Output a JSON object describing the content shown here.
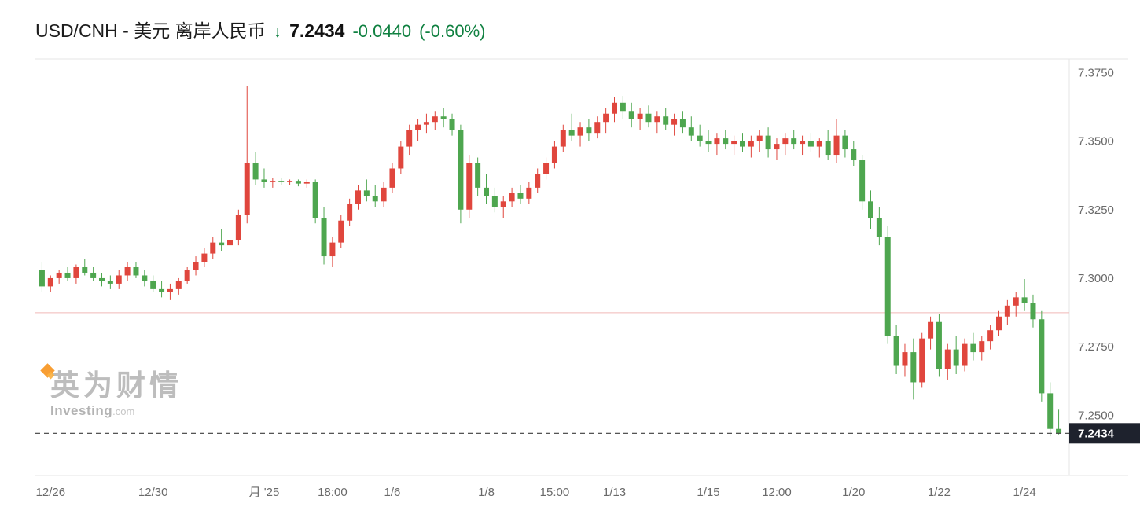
{
  "header": {
    "title": "USD/CNH - 美元 离岸人民币",
    "arrow": "↓",
    "price": "7.2434",
    "change": "-0.0440",
    "change_pct": "(-0.60%)",
    "change_color": "#0f8040"
  },
  "watermark": {
    "cn": "英为财情",
    "en": "Investing",
    "en_suffix": ".com"
  },
  "chart_data": {
    "type": "candlestick",
    "title": "USD/CNH - 美元 离岸人民币",
    "last_price": 7.2434,
    "prev_close": 7.2874,
    "change": -0.044,
    "change_pct_text": "-0.60%",
    "ylim": [
      7.228,
      7.38
    ],
    "y_ticks": [
      7.375,
      7.35,
      7.325,
      7.3,
      7.275,
      7.25
    ],
    "x_ticks": [
      {
        "label": "12/26",
        "index": 1
      },
      {
        "label": "12/30",
        "index": 13
      },
      {
        "label": "月 '25",
        "index": 26
      },
      {
        "label": "18:00",
        "index": 34
      },
      {
        "label": "1/6",
        "index": 41
      },
      {
        "label": "1/8",
        "index": 52
      },
      {
        "label": "15:00",
        "index": 60
      },
      {
        "label": "1/13",
        "index": 67
      },
      {
        "label": "1/15",
        "index": 78
      },
      {
        "label": "12:00",
        "index": 86
      },
      {
        "label": "1/20",
        "index": 95
      },
      {
        "label": "1/22",
        "index": 105
      },
      {
        "label": "1/24",
        "index": 115
      }
    ],
    "up_color": "#e0463d",
    "down_color": "#4ea64f",
    "prev_close_line_color": "#f0b9b7",
    "last_price_line_color": "#3c3c3c",
    "badge_bg": "#1e222d",
    "grid_color": "#e6e6e6",
    "candles": [
      [
        7.303,
        7.306,
        7.295,
        7.297
      ],
      [
        7.297,
        7.301,
        7.295,
        7.3
      ],
      [
        7.3,
        7.303,
        7.298,
        7.302
      ],
      [
        7.302,
        7.304,
        7.299,
        7.3
      ],
      [
        7.3,
        7.305,
        7.298,
        7.304
      ],
      [
        7.304,
        7.307,
        7.301,
        7.302
      ],
      [
        7.302,
        7.304,
        7.299,
        7.3
      ],
      [
        7.3,
        7.302,
        7.297,
        7.299
      ],
      [
        7.299,
        7.301,
        7.296,
        7.298
      ],
      [
        7.298,
        7.303,
        7.296,
        7.301
      ],
      [
        7.301,
        7.306,
        7.299,
        7.304
      ],
      [
        7.304,
        7.306,
        7.3,
        7.301
      ],
      [
        7.301,
        7.303,
        7.297,
        7.299
      ],
      [
        7.299,
        7.301,
        7.295,
        7.296
      ],
      [
        7.296,
        7.299,
        7.293,
        7.295
      ],
      [
        7.295,
        7.298,
        7.292,
        7.296
      ],
      [
        7.296,
        7.3,
        7.294,
        7.299
      ],
      [
        7.299,
        7.304,
        7.298,
        7.303
      ],
      [
        7.303,
        7.308,
        7.301,
        7.306
      ],
      [
        7.306,
        7.311,
        7.304,
        7.309
      ],
      [
        7.309,
        7.315,
        7.307,
        7.313
      ],
      [
        7.313,
        7.318,
        7.31,
        7.312
      ],
      [
        7.312,
        7.316,
        7.308,
        7.314
      ],
      [
        7.314,
        7.325,
        7.312,
        7.323
      ],
      [
        7.323,
        7.37,
        7.32,
        7.342
      ],
      [
        7.342,
        7.346,
        7.334,
        7.336
      ],
      [
        7.336,
        7.34,
        7.333,
        7.335
      ],
      [
        7.335,
        7.3365,
        7.333,
        7.3355
      ],
      [
        7.3355,
        7.3365,
        7.334,
        7.335
      ],
      [
        7.335,
        7.336,
        7.334,
        7.3355
      ],
      [
        7.3355,
        7.336,
        7.3335,
        7.3345
      ],
      [
        7.3345,
        7.336,
        7.333,
        7.335
      ],
      [
        7.335,
        7.336,
        7.32,
        7.322
      ],
      [
        7.322,
        7.326,
        7.305,
        7.308
      ],
      [
        7.308,
        7.315,
        7.304,
        7.313
      ],
      [
        7.313,
        7.323,
        7.311,
        7.321
      ],
      [
        7.321,
        7.329,
        7.319,
        7.327
      ],
      [
        7.327,
        7.334,
        7.325,
        7.332
      ],
      [
        7.332,
        7.336,
        7.328,
        7.33
      ],
      [
        7.33,
        7.334,
        7.326,
        7.328
      ],
      [
        7.328,
        7.335,
        7.326,
        7.333
      ],
      [
        7.333,
        7.342,
        7.331,
        7.34
      ],
      [
        7.34,
        7.35,
        7.338,
        7.348
      ],
      [
        7.348,
        7.356,
        7.345,
        7.354
      ],
      [
        7.354,
        7.358,
        7.35,
        7.356
      ],
      [
        7.356,
        7.36,
        7.353,
        7.357
      ],
      [
        7.357,
        7.361,
        7.354,
        7.359
      ],
      [
        7.359,
        7.362,
        7.355,
        7.358
      ],
      [
        7.358,
        7.36,
        7.352,
        7.354
      ],
      [
        7.354,
        7.356,
        7.32,
        7.325
      ],
      [
        7.325,
        7.345,
        7.322,
        7.342
      ],
      [
        7.342,
        7.344,
        7.33,
        7.333
      ],
      [
        7.333,
        7.338,
        7.327,
        7.33
      ],
      [
        7.33,
        7.333,
        7.324,
        7.326
      ],
      [
        7.326,
        7.33,
        7.322,
        7.328
      ],
      [
        7.328,
        7.333,
        7.326,
        7.331
      ],
      [
        7.331,
        7.334,
        7.327,
        7.329
      ],
      [
        7.329,
        7.335,
        7.327,
        7.333
      ],
      [
        7.333,
        7.34,
        7.331,
        7.338
      ],
      [
        7.338,
        7.344,
        7.336,
        7.342
      ],
      [
        7.342,
        7.35,
        7.34,
        7.348
      ],
      [
        7.348,
        7.356,
        7.346,
        7.354
      ],
      [
        7.354,
        7.36,
        7.35,
        7.352
      ],
      [
        7.352,
        7.357,
        7.348,
        7.355
      ],
      [
        7.355,
        7.358,
        7.35,
        7.353
      ],
      [
        7.353,
        7.359,
        7.351,
        7.357
      ],
      [
        7.357,
        7.362,
        7.353,
        7.36
      ],
      [
        7.36,
        7.366,
        7.357,
        7.364
      ],
      [
        7.364,
        7.3665,
        7.358,
        7.361
      ],
      [
        7.361,
        7.364,
        7.355,
        7.358
      ],
      [
        7.358,
        7.362,
        7.354,
        7.36
      ],
      [
        7.36,
        7.363,
        7.355,
        7.357
      ],
      [
        7.357,
        7.361,
        7.353,
        7.359
      ],
      [
        7.359,
        7.362,
        7.354,
        7.356
      ],
      [
        7.356,
        7.36,
        7.352,
        7.358
      ],
      [
        7.358,
        7.361,
        7.353,
        7.355
      ],
      [
        7.355,
        7.359,
        7.35,
        7.352
      ],
      [
        7.352,
        7.356,
        7.348,
        7.35
      ],
      [
        7.35,
        7.354,
        7.346,
        7.349
      ],
      [
        7.349,
        7.353,
        7.345,
        7.351
      ],
      [
        7.351,
        7.354,
        7.347,
        7.349
      ],
      [
        7.349,
        7.352,
        7.345,
        7.35
      ],
      [
        7.35,
        7.353,
        7.346,
        7.348
      ],
      [
        7.348,
        7.352,
        7.344,
        7.35
      ],
      [
        7.35,
        7.354,
        7.346,
        7.352
      ],
      [
        7.352,
        7.355,
        7.344,
        7.347
      ],
      [
        7.347,
        7.351,
        7.343,
        7.349
      ],
      [
        7.349,
        7.353,
        7.345,
        7.351
      ],
      [
        7.351,
        7.354,
        7.347,
        7.349
      ],
      [
        7.349,
        7.352,
        7.345,
        7.35
      ],
      [
        7.35,
        7.353,
        7.346,
        7.348
      ],
      [
        7.348,
        7.351,
        7.344,
        7.35
      ],
      [
        7.35,
        7.354,
        7.343,
        7.345
      ],
      [
        7.345,
        7.358,
        7.342,
        7.352
      ],
      [
        7.352,
        7.354,
        7.344,
        7.347
      ],
      [
        7.347,
        7.35,
        7.341,
        7.343
      ],
      [
        7.343,
        7.345,
        7.325,
        7.328
      ],
      [
        7.328,
        7.332,
        7.318,
        7.322
      ],
      [
        7.322,
        7.326,
        7.312,
        7.315
      ],
      [
        7.315,
        7.319,
        7.276,
        7.279
      ],
      [
        7.279,
        7.283,
        7.265,
        7.268
      ],
      [
        7.268,
        7.276,
        7.264,
        7.273
      ],
      [
        7.273,
        7.278,
        7.2557,
        7.262
      ],
      [
        7.262,
        7.28,
        7.26,
        7.278
      ],
      [
        7.278,
        7.286,
        7.274,
        7.284
      ],
      [
        7.284,
        7.287,
        7.264,
        7.267
      ],
      [
        7.267,
        7.276,
        7.263,
        7.274
      ],
      [
        7.274,
        7.279,
        7.265,
        7.268
      ],
      [
        7.268,
        7.278,
        7.266,
        7.276
      ],
      [
        7.276,
        7.28,
        7.27,
        7.273
      ],
      [
        7.273,
        7.279,
        7.27,
        7.277
      ],
      [
        7.277,
        7.283,
        7.274,
        7.281
      ],
      [
        7.281,
        7.288,
        7.279,
        7.286
      ],
      [
        7.286,
        7.292,
        7.283,
        7.29
      ],
      [
        7.29,
        7.295,
        7.286,
        7.293
      ],
      [
        7.293,
        7.2997,
        7.288,
        7.291
      ],
      [
        7.291,
        7.294,
        7.282,
        7.285
      ],
      [
        7.285,
        7.288,
        7.255,
        7.258
      ],
      [
        7.258,
        7.262,
        7.2423,
        7.245
      ],
      [
        7.245,
        7.252,
        7.243,
        7.2434
      ]
    ]
  }
}
